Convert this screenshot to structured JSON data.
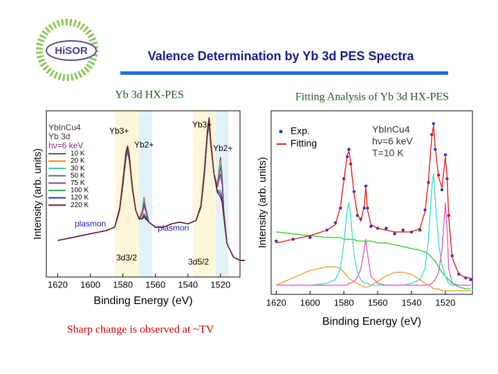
{
  "slide": {
    "title": "Valence Determination by Yb 3d PES Spectra",
    "logo_text": "HiSOR",
    "note": "Sharp change is observed at ~TV"
  },
  "chart_data": [
    {
      "type": "line",
      "title": "Yb 3d HX-PES",
      "x_label": "Binding Energy (eV)",
      "y_label": "Intensity (arb. units)",
      "xlim": [
        1627,
        1508
      ],
      "xticks": [
        1620,
        1600,
        1580,
        1560,
        1540,
        1520
      ],
      "ylim": [
        0,
        100
      ],
      "annotations": [
        "YbInCu4",
        "Yb 3d",
        "hν=6 keV",
        "Yb3+",
        "Yb2+",
        "Yb3+",
        "Yb2+",
        "plasmon",
        "plasmon",
        "3d3/2",
        "3d5/2"
      ],
      "highlight_regions": [
        {
          "range": [
            1585,
            1570
          ],
          "color": "#fdf6d8"
        },
        {
          "range": [
            1570,
            1562
          ],
          "color": "#e2f2fb"
        },
        {
          "range": [
            1537,
            1523
          ],
          "color": "#fdf6d8"
        },
        {
          "range": [
            1523,
            1515
          ],
          "color": "#e2f2fb"
        }
      ],
      "x": [
        1620,
        1610,
        1600,
        1590,
        1585,
        1582,
        1580,
        1578,
        1577,
        1576,
        1574,
        1572,
        1570,
        1568,
        1567,
        1566,
        1564,
        1560,
        1555,
        1550,
        1545,
        1540,
        1535,
        1532,
        1530,
        1528,
        1527,
        1526,
        1524,
        1522,
        1520,
        1519,
        1518,
        1516,
        1512,
        1508,
        1505
      ],
      "series": [
        {
          "name": "10 K",
          "color": "#555555",
          "values": [
            22,
            24,
            26,
            28,
            30,
            40,
            55,
            72,
            75,
            70,
            52,
            40,
            35,
            40,
            48,
            42,
            33,
            30,
            30,
            32,
            33,
            32,
            34,
            42,
            60,
            85,
            92,
            80,
            62,
            55,
            72,
            62,
            40,
            20,
            12,
            10,
            10
          ]
        },
        {
          "name": "20 K",
          "color": "#e08a2e",
          "values": [
            22,
            24,
            26,
            28,
            30,
            40,
            55,
            72,
            75,
            70,
            52,
            40,
            35,
            40,
            47,
            42,
            33,
            30,
            30,
            32,
            33,
            32,
            34,
            42,
            60,
            85,
            92,
            80,
            62,
            55,
            70,
            61,
            40,
            20,
            12,
            10,
            10
          ]
        },
        {
          "name": "30 K",
          "color": "#33bbbb",
          "values": [
            22,
            24,
            26,
            28,
            30,
            40,
            55,
            72,
            75,
            70,
            52,
            40,
            35,
            39,
            46,
            41,
            33,
            30,
            30,
            32,
            33,
            32,
            34,
            42,
            60,
            85,
            92,
            80,
            62,
            55,
            68,
            60,
            40,
            20,
            12,
            10,
            10
          ]
        },
        {
          "name": "50 K",
          "color": "#5a6a8a",
          "values": [
            22,
            24,
            26,
            28,
            30,
            40,
            55,
            72,
            76,
            70,
            52,
            40,
            35,
            39,
            45,
            41,
            33,
            30,
            30,
            32,
            33,
            32,
            34,
            42,
            60,
            85,
            92,
            80,
            62,
            55,
            66,
            59,
            40,
            20,
            12,
            10,
            10
          ]
        },
        {
          "name": "75 K",
          "color": "#a0308a",
          "values": [
            22,
            24,
            26,
            28,
            30,
            40,
            56,
            73,
            76,
            71,
            52,
            40,
            35,
            38,
            43,
            40,
            33,
            30,
            30,
            32,
            33,
            32,
            34,
            42,
            61,
            86,
            93,
            81,
            62,
            54,
            62,
            56,
            39,
            20,
            12,
            10,
            10
          ]
        },
        {
          "name": "100 K",
          "color": "#33aa33",
          "values": [
            22,
            24,
            26,
            28,
            30,
            41,
            57,
            74,
            77,
            72,
            53,
            40,
            35,
            36,
            38,
            37,
            33,
            30,
            30,
            32,
            33,
            32,
            34,
            43,
            62,
            87,
            95,
            82,
            62,
            52,
            52,
            48,
            37,
            20,
            12,
            10,
            10
          ]
        },
        {
          "name": "120 K",
          "color": "#2233cc",
          "values": [
            22,
            24,
            26,
            28,
            30,
            41,
            57,
            75,
            78,
            72,
            53,
            40,
            35,
            35,
            37,
            36,
            33,
            30,
            30,
            32,
            33,
            32,
            34,
            43,
            62,
            88,
            96,
            82,
            62,
            52,
            50,
            47,
            37,
            20,
            12,
            10,
            10
          ]
        },
        {
          "name": "220 K",
          "color": "#7a1a1a",
          "values": [
            22,
            24,
            26,
            28,
            30,
            41,
            58,
            76,
            79,
            73,
            53,
            40,
            35,
            35,
            36,
            35,
            33,
            30,
            30,
            32,
            33,
            32,
            34,
            43,
            63,
            88,
            96,
            83,
            62,
            51,
            48,
            45,
            36,
            20,
            12,
            10,
            10
          ]
        }
      ]
    },
    {
      "type": "line",
      "title": "Fitting Analysis of Yb 3d HX-PES",
      "x_label": "Binding Energy (eV)",
      "y_label": "Intensity (arb. units)",
      "xlim": [
        1623,
        1504
      ],
      "xticks": [
        1620,
        1600,
        1580,
        1560,
        1540,
        1520
      ],
      "ylim": [
        0,
        100
      ],
      "annotations": [
        "YbInCu4",
        "hν=6 keV",
        "T=10 K"
      ],
      "x": [
        1620,
        1610,
        1600,
        1590,
        1585,
        1582,
        1580,
        1578,
        1577,
        1576,
        1574,
        1572,
        1570,
        1568,
        1567,
        1566,
        1564,
        1560,
        1555,
        1550,
        1545,
        1540,
        1535,
        1532,
        1530,
        1528,
        1527,
        1526,
        1524,
        1522,
        1520,
        1519,
        1518,
        1516,
        1512,
        1508,
        1505
      ],
      "series": [
        {
          "color": "#33cc33",
          "values": [
            34,
            33,
            32,
            31,
            31,
            31,
            30,
            30,
            30,
            30,
            30,
            29,
            29,
            29,
            29,
            29,
            29,
            28,
            28,
            27,
            26,
            25,
            24,
            23,
            22,
            20,
            19,
            18,
            15,
            12,
            10,
            9,
            8,
            6,
            4,
            3,
            3
          ]
        },
        {
          "color": "#f0a030",
          "values": [
            5,
            9,
            13,
            15,
            15,
            14,
            12,
            10,
            9,
            8,
            7,
            6,
            5,
            4,
            4,
            4,
            5,
            7,
            10,
            12,
            12,
            11,
            8,
            6,
            5,
            4,
            3,
            3,
            3,
            2,
            2,
            2,
            2,
            2,
            2,
            2,
            2
          ]
        },
        {
          "color": "#40e0d0",
          "values": [
            5,
            5,
            5,
            6,
            8,
            14,
            28,
            46,
            50,
            42,
            22,
            12,
            8,
            6,
            6,
            6,
            5,
            5,
            5,
            5,
            5,
            6,
            8,
            14,
            30,
            58,
            66,
            52,
            28,
            16,
            10,
            8,
            6,
            5,
            5,
            5,
            5
          ]
        },
        {
          "color": "#e060c0",
          "values": [
            5,
            5,
            5,
            5,
            5,
            5,
            5,
            5,
            6,
            6,
            7,
            9,
            14,
            24,
            30,
            22,
            10,
            6,
            5,
            5,
            5,
            5,
            5,
            5,
            5,
            6,
            7,
            8,
            12,
            24,
            50,
            36,
            14,
            6,
            5,
            5,
            5
          ]
        },
        {
          "name": "Exp.",
          "color": "#2233cc",
          "style": "points",
          "values": [
            29,
            30,
            31,
            35,
            39,
            47,
            63,
            75,
            79,
            71,
            56,
            43,
            41,
            47,
            59,
            47,
            37,
            36,
            36,
            33,
            35,
            34,
            35,
            46,
            61,
            87,
            93,
            79,
            65,
            57,
            76,
            63,
            43,
            21,
            11,
            9,
            8
          ]
        },
        {
          "name": "Fitting",
          "color": "#e02020",
          "values": [
            28,
            30,
            32,
            35,
            38,
            48,
            62,
            76,
            78,
            72,
            55,
            44,
            40,
            48,
            58,
            46,
            38,
            36,
            35,
            34,
            34,
            34,
            36,
            45,
            62,
            86,
            92,
            80,
            64,
            58,
            75,
            64,
            42,
            20,
            11,
            9,
            9
          ]
        }
      ]
    }
  ]
}
